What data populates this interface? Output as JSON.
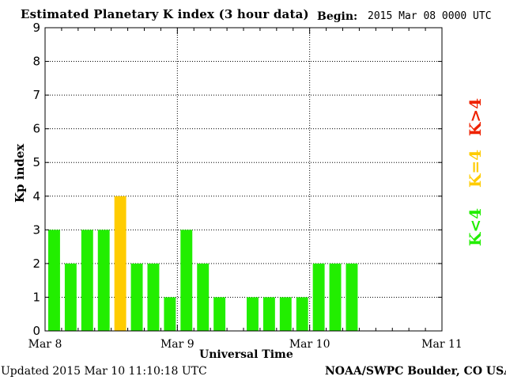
{
  "header": {
    "title": "Estimated Planetary K index (3 hour data)",
    "begin_label": "Begin:",
    "begin_value": "2015 Mar 08 0000 UTC"
  },
  "footer": {
    "updated": "Updated 2015 Mar 10 11:10:18 UTC",
    "credit": "NOAA/SWPC Boulder, CO USA"
  },
  "legend": {
    "items": [
      {
        "label": "K<4",
        "color": "#22ee00"
      },
      {
        "label": "K=4",
        "color": "#ffcc00"
      },
      {
        "label": "K>4",
        "color": "#ee2200"
      }
    ]
  },
  "chart_data": {
    "type": "bar",
    "title": "Estimated Planetary K index (3 hour data)",
    "xlabel": "Universal Time",
    "ylabel": "Kp index",
    "ylim": [
      0,
      9
    ],
    "yticks": [
      "0",
      "1",
      "2",
      "3",
      "4",
      "5",
      "6",
      "7",
      "8",
      "9"
    ],
    "xticks": [
      "Mar 8",
      "Mar 9",
      "Mar 10",
      "Mar 11"
    ],
    "grid": true,
    "bar_interval_hours": 3,
    "values": [
      3,
      2,
      3,
      3,
      4,
      2,
      2,
      1,
      3,
      2,
      1,
      null,
      1,
      1,
      1,
      1,
      2,
      2,
      2
    ],
    "colors": {
      "below": "#22ee00",
      "equal": "#ffcc00",
      "above": "#ee2200"
    }
  }
}
